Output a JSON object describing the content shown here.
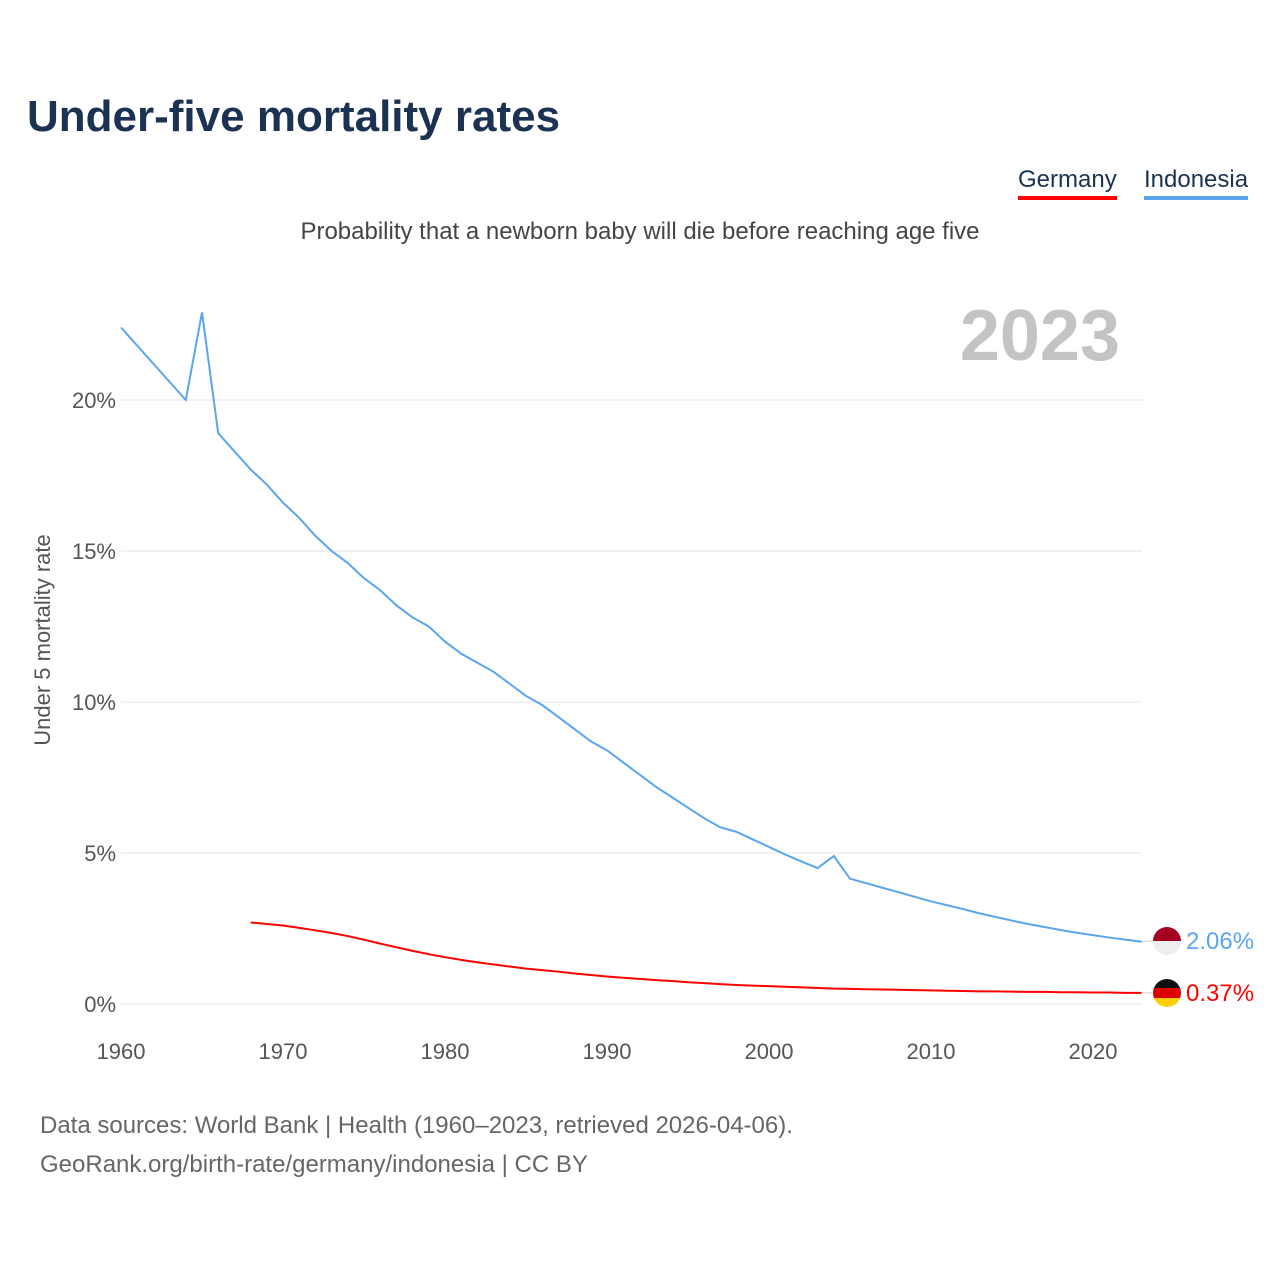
{
  "title": "Under-five mortality rates",
  "subtitle": "Probability that a newborn baby will die before reaching age five",
  "legend": [
    "Germany",
    "Indonesia"
  ],
  "year_label": "2023",
  "footer": {
    "line1": "Data sources: World Bank | Health (1960–2023, retrieved 2026-04-06).",
    "line2": "GeoRank.org/birth-rate/germany/indonesia | CC BY"
  },
  "chart_data": {
    "type": "line",
    "title": "Under-five mortality rates",
    "xlabel": "",
    "ylabel": "Under 5 mortality rate",
    "xlim": [
      1960,
      2023
    ],
    "ylim": [
      0,
      23
    ],
    "xticks": [
      1960,
      1970,
      1980,
      1990,
      2000,
      2010,
      2020
    ],
    "yticks": [
      0,
      5,
      10,
      15,
      20
    ],
    "ytick_labels": [
      "0%",
      "5%",
      "10%",
      "15%",
      "20%"
    ],
    "grid": true,
    "legend_position": "top-right",
    "series": [
      {
        "name": "Germany",
        "color": "#ff0000",
        "start_year": 1968,
        "end_label": "0.37%",
        "values": [
          2.7,
          2.65,
          2.6,
          2.52,
          2.44,
          2.35,
          2.25,
          2.13,
          2.0,
          1.88,
          1.76,
          1.65,
          1.55,
          1.46,
          1.38,
          1.31,
          1.24,
          1.17,
          1.12,
          1.07,
          1.01,
          0.96,
          0.91,
          0.87,
          0.83,
          0.79,
          0.76,
          0.72,
          0.69,
          0.66,
          0.63,
          0.61,
          0.59,
          0.57,
          0.55,
          0.53,
          0.51,
          0.5,
          0.49,
          0.48,
          0.47,
          0.46,
          0.45,
          0.44,
          0.43,
          0.42,
          0.42,
          0.41,
          0.4,
          0.4,
          0.39,
          0.39,
          0.38,
          0.38,
          0.37,
          0.37
        ]
      },
      {
        "name": "Indonesia",
        "color": "#5aa6ee",
        "start_year": 1960,
        "end_label": "2.06%",
        "values": [
          22.4,
          21.8,
          21.2,
          20.6,
          20.0,
          22.9,
          18.9,
          18.3,
          17.7,
          17.2,
          16.6,
          16.1,
          15.5,
          15.0,
          14.6,
          14.1,
          13.7,
          13.2,
          12.8,
          12.5,
          12.0,
          11.6,
          11.3,
          11.0,
          10.6,
          10.2,
          9.9,
          9.5,
          9.1,
          8.7,
          8.4,
          8.0,
          7.6,
          7.2,
          6.85,
          6.5,
          6.15,
          5.85,
          5.7,
          5.45,
          5.2,
          4.95,
          4.72,
          4.5,
          4.9,
          4.15,
          4.0,
          3.85,
          3.7,
          3.55,
          3.4,
          3.27,
          3.14,
          3.0,
          2.88,
          2.76,
          2.65,
          2.55,
          2.45,
          2.36,
          2.28,
          2.2,
          2.13,
          2.06
        ]
      }
    ]
  }
}
